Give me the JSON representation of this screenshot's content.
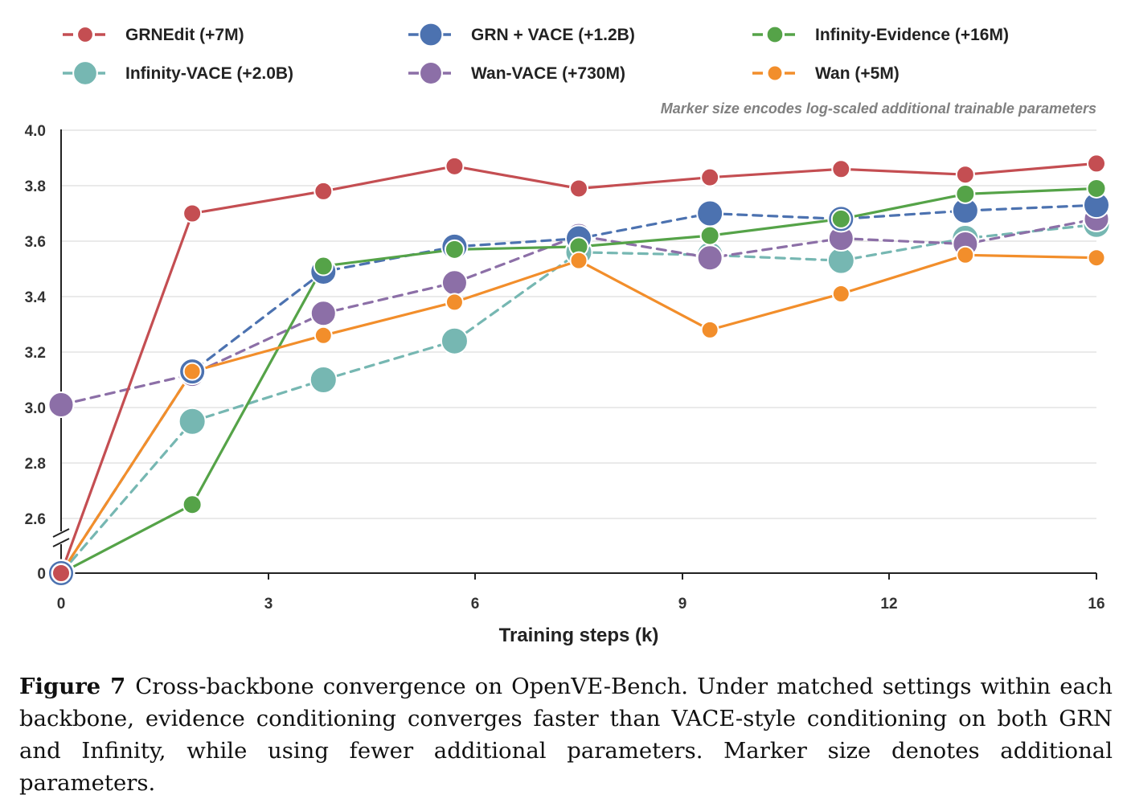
{
  "chart_data": {
    "type": "line",
    "title": "",
    "xlabel": "Training steps (k)",
    "ylabel": "",
    "x_ticks": [
      "0",
      "3",
      "6",
      "9",
      "12",
      "16"
    ],
    "y_ticks": [
      "0",
      "2.6",
      "2.8",
      "3.0",
      "3.2",
      "3.4",
      "3.6",
      "3.8",
      "4.0"
    ],
    "y_axis_break": "between 0 and 2.6",
    "annotation": "Marker size encodes log-scaled additional trainable parameters",
    "grid": "horizontal",
    "legend_position": "top",
    "x_positions": [
      0,
      1.9,
      3.8,
      5.7,
      7.5,
      9.4,
      11.3,
      13.1,
      15.0
    ],
    "series": [
      {
        "name": "GRNEdit (+7M)",
        "color": "#c44e52",
        "style": "solid",
        "marker_radius": 11,
        "values": [
          0,
          3.7,
          3.78,
          3.87,
          3.79,
          3.83,
          3.86,
          3.84,
          3.88
        ]
      },
      {
        "name": "GRN + VACE (+1.2B)",
        "color": "#4c72b0",
        "style": "dashed",
        "marker_radius": 16,
        "values": [
          0,
          3.13,
          3.49,
          3.58,
          3.61,
          3.7,
          3.68,
          3.71,
          3.73
        ]
      },
      {
        "name": "Infinity-Evidence (+16M)",
        "color": "#55a348",
        "style": "solid",
        "marker_radius": 11.5,
        "values": [
          0,
          2.65,
          3.51,
          3.57,
          3.58,
          3.62,
          3.68,
          3.77,
          3.79
        ]
      },
      {
        "name": "Infinity-VACE (+2.0B)",
        "color": "#76b7b2",
        "style": "dashed",
        "marker_radius": 16.5,
        "values": [
          0,
          2.95,
          3.1,
          3.24,
          3.56,
          3.55,
          3.53,
          3.61,
          3.66
        ]
      },
      {
        "name": "Wan-VACE (+730M)",
        "color": "#8c6fa7",
        "style": "dashed",
        "marker_radius": 15.5,
        "values": [
          3.01,
          3.12,
          3.34,
          3.45,
          3.62,
          3.54,
          3.61,
          3.59,
          3.68
        ]
      },
      {
        "name": "Wan (+5M)",
        "color": "#f28e2b",
        "style": "solid",
        "marker_radius": 10.5,
        "values": [
          0,
          3.13,
          3.26,
          3.38,
          3.53,
          3.28,
          3.41,
          3.55,
          3.54
        ]
      }
    ]
  },
  "caption": {
    "label": "Figure 7",
    "text": "Cross-backbone convergence on OpenVE-Bench. Under matched settings within each backbone, evidence conditioning converges faster than VACE-style conditioning on both GRN and Infinity, while using fewer additional parameters. Marker size denotes additional parameters."
  }
}
